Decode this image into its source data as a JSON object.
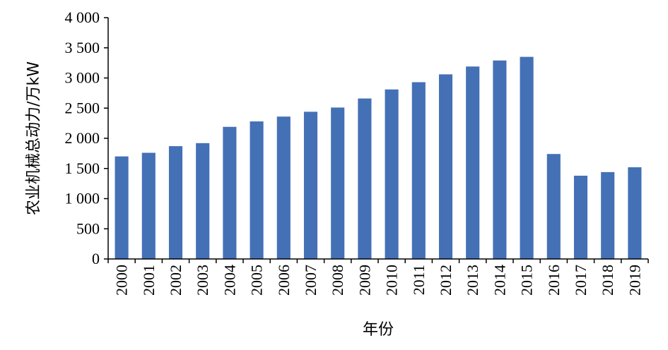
{
  "chart_data": {
    "type": "bar",
    "title": "",
    "xlabel": "年份",
    "ylabel": "农业机械总动力/万kW",
    "ylim": [
      0,
      4000
    ],
    "yticks": [
      0,
      500,
      1000,
      1500,
      2000,
      2500,
      3000,
      3500,
      4000
    ],
    "ytick_labels": [
      "0",
      "500",
      "1 000",
      "1 500",
      "2 000",
      "2 500",
      "3 000",
      "3 500",
      "4 000"
    ],
    "categories": [
      "2000",
      "2001",
      "2002",
      "2003",
      "2004",
      "2005",
      "2006",
      "2007",
      "2008",
      "2009",
      "2010",
      "2011",
      "2012",
      "2013",
      "2014",
      "2015",
      "2016",
      "2017",
      "2018",
      "2019"
    ],
    "values": [
      1700,
      1760,
      1870,
      1920,
      2190,
      2280,
      2360,
      2440,
      2510,
      2660,
      2810,
      2930,
      3060,
      3190,
      3290,
      3350,
      1740,
      1380,
      1440,
      1520
    ],
    "bar_color": "#4470b6",
    "grid": false,
    "legend": "none"
  }
}
